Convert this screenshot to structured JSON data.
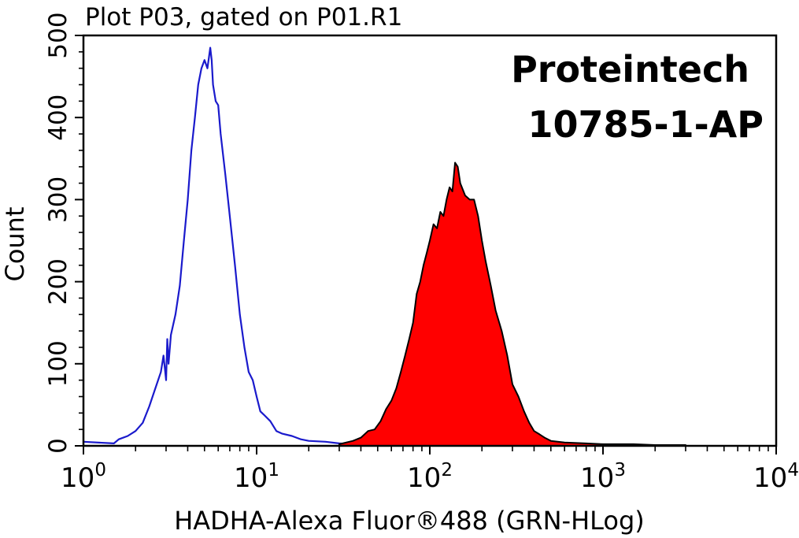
{
  "chart_data": {
    "type": "area",
    "title": "Plot P03, gated on P01.R1",
    "xlabel": "HADHA-Alexa Fluor®488 (GRN-HLog)",
    "ylabel": "Count",
    "xscale": "log",
    "xlim": [
      1,
      10000
    ],
    "ylim": [
      0,
      500
    ],
    "grid": false,
    "x_ticks": [
      {
        "value": 1,
        "base": "10",
        "exp": "0"
      },
      {
        "value": 10,
        "base": "10",
        "exp": "1"
      },
      {
        "value": 100,
        "base": "10",
        "exp": "2"
      },
      {
        "value": 1000,
        "base": "10",
        "exp": "3"
      },
      {
        "value": 10000,
        "base": "10",
        "exp": "4"
      }
    ],
    "y_ticks": [
      0,
      100,
      200,
      300,
      400,
      500
    ],
    "annotations": [
      "Proteintech",
      "10785-1-AP"
    ],
    "colors": {
      "control": "#1a1acc",
      "sample_fill": "#ff0000",
      "sample_line": "#000000"
    },
    "series": [
      {
        "style": "outline",
        "color": "#1a1acc",
        "x": [
          1.0,
          1.5,
          1.6,
          1.8,
          2.0,
          2.2,
          2.4,
          2.6,
          2.8,
          2.9,
          3.0,
          3.05,
          3.1,
          3.2,
          3.4,
          3.6,
          3.8,
          4.0,
          4.2,
          4.4,
          4.6,
          4.8,
          5.0,
          5.2,
          5.4,
          5.5,
          5.6,
          5.8,
          6.0,
          6.2,
          6.6,
          7.0,
          7.5,
          8.0,
          8.5,
          9.0,
          9.5,
          10.0,
          10.5,
          11.0,
          12.0,
          13.0,
          14.0,
          16.0,
          18.0,
          20.0,
          25.0,
          30.0,
          35.0
        ],
        "y": [
          5,
          3,
          8,
          12,
          18,
          28,
          48,
          70,
          90,
          110,
          80,
          130,
          100,
          135,
          160,
          195,
          250,
          300,
          360,
          400,
          440,
          460,
          470,
          460,
          485,
          470,
          440,
          420,
          415,
          380,
          330,
          280,
          220,
          160,
          120,
          90,
          80,
          60,
          42,
          38,
          30,
          18,
          15,
          12,
          8,
          6,
          5,
          3,
          2
        ]
      },
      {
        "style": "filled",
        "color": "#ff0000",
        "x": [
          30,
          36,
          40,
          44,
          48,
          52,
          56,
          60,
          64,
          68,
          72,
          76,
          80,
          84,
          88,
          92,
          96,
          100,
          105,
          110,
          115,
          120,
          125,
          130,
          135,
          140,
          145,
          150,
          160,
          170,
          180,
          190,
          200,
          210,
          225,
          240,
          260,
          280,
          300,
          325,
          350,
          375,
          400,
          430,
          460,
          500,
          600,
          800,
          1000,
          1500,
          2000,
          3000
        ],
        "y": [
          2,
          6,
          10,
          18,
          20,
          30,
          45,
          55,
          70,
          90,
          110,
          130,
          150,
          185,
          200,
          220,
          235,
          250,
          270,
          265,
          285,
          280,
          300,
          315,
          310,
          345,
          340,
          320,
          305,
          300,
          300,
          280,
          250,
          225,
          195,
          165,
          140,
          110,
          75,
          60,
          42,
          28,
          18,
          14,
          10,
          6,
          4,
          3,
          2,
          2,
          1,
          1
        ]
      }
    ]
  }
}
